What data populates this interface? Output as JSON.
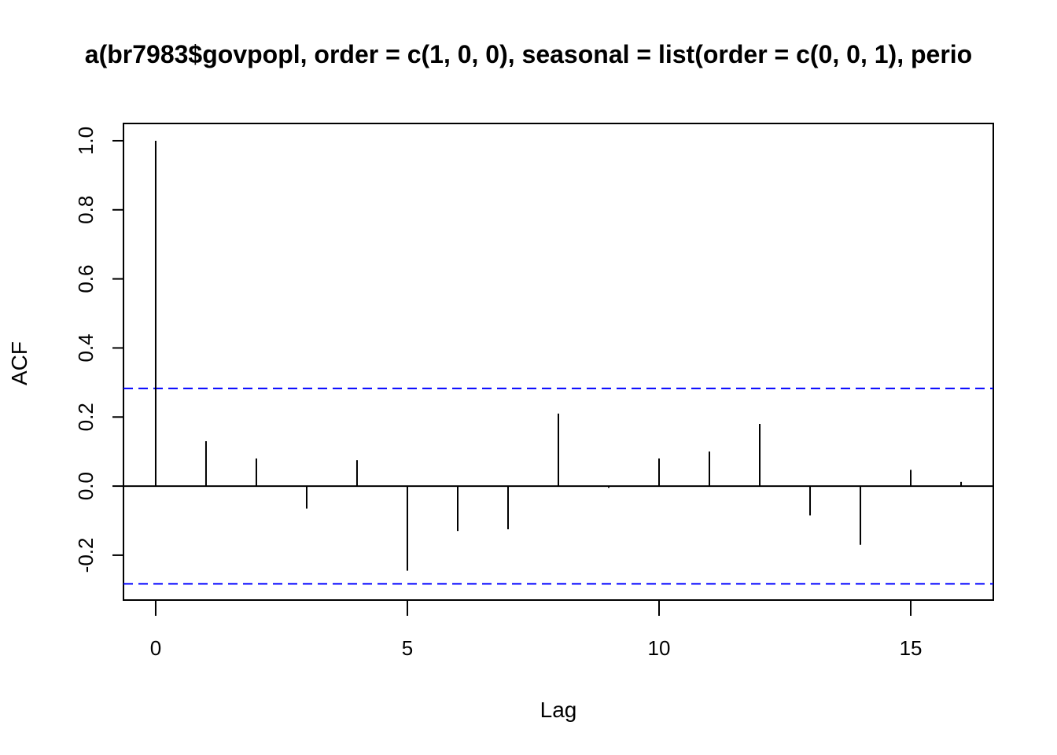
{
  "chart_data": {
    "type": "bar",
    "subtype": "acf",
    "title": "a(br7983$govpopl, order = c(1, 0, 0), seasonal = list(order = c(0, 0, 1), perio",
    "xlabel": "Lag",
    "ylabel": "ACF",
    "xlim": [
      -0.64,
      16.64
    ],
    "ylim": [
      -0.33,
      1.05
    ],
    "xticks": [
      0,
      5,
      10,
      15
    ],
    "yticks": [
      -0.2,
      0.0,
      0.2,
      0.4,
      0.6,
      0.8,
      1.0
    ],
    "ytick_labels": [
      "-0.2",
      "0.0",
      "0.2",
      "0.4",
      "0.6",
      "0.8",
      "1.0"
    ],
    "series": [
      {
        "lags": [
          0,
          1,
          2,
          3,
          4,
          5,
          6,
          7,
          8,
          9,
          10,
          11,
          12,
          13,
          14,
          15,
          16
        ],
        "values": [
          1.0,
          0.13,
          0.08,
          -0.065,
          0.075,
          -0.245,
          -0.13,
          -0.125,
          0.21,
          -0.005,
          0.08,
          0.1,
          0.18,
          -0.085,
          -0.17,
          0.047,
          0.012
        ]
      }
    ],
    "confidence_band": {
      "upper": 0.283,
      "lower": -0.283,
      "color": "#0000ff",
      "style": "dashed"
    },
    "zero_line": true,
    "grid": false,
    "bar_color": "#000000"
  }
}
